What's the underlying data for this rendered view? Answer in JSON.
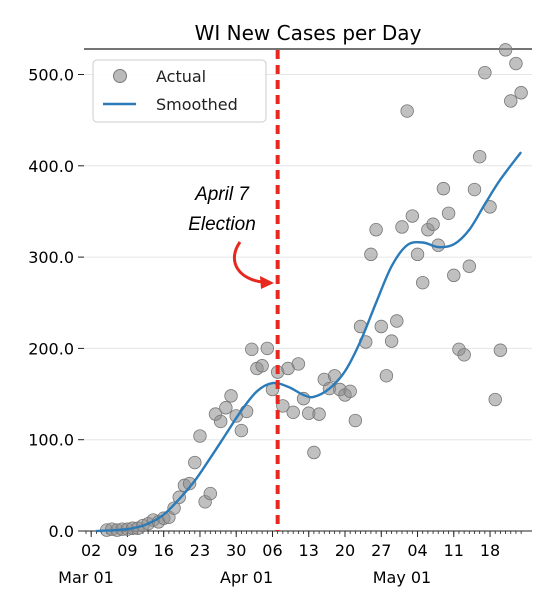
{
  "chart_data": {
    "type": "scatter",
    "title": "WI New Cases per Day",
    "xlabel": "",
    "ylabel": "",
    "x_range": [
      "2020-03-01",
      "2020-05-24"
    ],
    "ylim": [
      0,
      530
    ],
    "grid": "horizontal",
    "legend_position": "top-left",
    "y_ticks": [
      "0.0",
      "100.0",
      "200.0",
      "300.0",
      "400.0",
      "500.0"
    ],
    "x_tick_days": [
      "02",
      "09",
      "16",
      "23",
      "30",
      "06",
      "13",
      "20",
      "27",
      "04",
      "11",
      "18"
    ],
    "x_tick_months": [
      "Mar 01",
      "Apr 01",
      "May 01"
    ],
    "legend": [
      {
        "label": "Actual",
        "marker": "circle",
        "color": "#8c8c8c"
      },
      {
        "label": "Smoothed",
        "marker": "line",
        "color": "#2b7bb9"
      }
    ],
    "annotation": {
      "lines": [
        "April 7",
        "Election"
      ],
      "date": "2020-04-07",
      "line_color": "#e8281e",
      "arrow_color": "#e8281e"
    },
    "series": [
      {
        "name": "Actual",
        "kind": "scatter",
        "color": "#8c8c8c",
        "points": [
          [
            "2020-03-05",
            1
          ],
          [
            "2020-03-06",
            2
          ],
          [
            "2020-03-07",
            1
          ],
          [
            "2020-03-08",
            2
          ],
          [
            "2020-03-09",
            2
          ],
          [
            "2020-03-10",
            3
          ],
          [
            "2020-03-11",
            3
          ],
          [
            "2020-03-12",
            6
          ],
          [
            "2020-03-13",
            8
          ],
          [
            "2020-03-14",
            12
          ],
          [
            "2020-03-15",
            10
          ],
          [
            "2020-03-16",
            14
          ],
          [
            "2020-03-17",
            15
          ],
          [
            "2020-03-18",
            25
          ],
          [
            "2020-03-19",
            37
          ],
          [
            "2020-03-20",
            50
          ],
          [
            "2020-03-21",
            52
          ],
          [
            "2020-03-22",
            75
          ],
          [
            "2020-03-23",
            104
          ],
          [
            "2020-03-24",
            32
          ],
          [
            "2020-03-25",
            41
          ],
          [
            "2020-03-26",
            128
          ],
          [
            "2020-03-27",
            120
          ],
          [
            "2020-03-28",
            135
          ],
          [
            "2020-03-29",
            148
          ],
          [
            "2020-03-30",
            126
          ],
          [
            "2020-03-31",
            110
          ],
          [
            "2020-04-01",
            131
          ],
          [
            "2020-04-02",
            199
          ],
          [
            "2020-04-03",
            178
          ],
          [
            "2020-04-04",
            181
          ],
          [
            "2020-04-05",
            200
          ],
          [
            "2020-04-06",
            155
          ],
          [
            "2020-04-07",
            174
          ],
          [
            "2020-04-08",
            137
          ],
          [
            "2020-04-09",
            178
          ],
          [
            "2020-04-10",
            130
          ],
          [
            "2020-04-11",
            183
          ],
          [
            "2020-04-12",
            145
          ],
          [
            "2020-04-13",
            129
          ],
          [
            "2020-04-14",
            86
          ],
          [
            "2020-04-15",
            128
          ],
          [
            "2020-04-16",
            166
          ],
          [
            "2020-04-17",
            156
          ],
          [
            "2020-04-18",
            170
          ],
          [
            "2020-04-19",
            155
          ],
          [
            "2020-04-20",
            149
          ],
          [
            "2020-04-21",
            153
          ],
          [
            "2020-04-22",
            121
          ],
          [
            "2020-04-23",
            224
          ],
          [
            "2020-04-24",
            207
          ],
          [
            "2020-04-25",
            303
          ],
          [
            "2020-04-26",
            330
          ],
          [
            "2020-04-27",
            224
          ],
          [
            "2020-04-28",
            170
          ],
          [
            "2020-04-29",
            208
          ],
          [
            "2020-04-30",
            230
          ],
          [
            "2020-05-01",
            333
          ],
          [
            "2020-05-02",
            460
          ],
          [
            "2020-05-03",
            345
          ],
          [
            "2020-05-04",
            303
          ],
          [
            "2020-05-05",
            272
          ],
          [
            "2020-05-06",
            330
          ],
          [
            "2020-05-07",
            336
          ],
          [
            "2020-05-08",
            313
          ],
          [
            "2020-05-09",
            375
          ],
          [
            "2020-05-10",
            348
          ],
          [
            "2020-05-11",
            280
          ],
          [
            "2020-05-12",
            199
          ],
          [
            "2020-05-13",
            193
          ],
          [
            "2020-05-14",
            290
          ],
          [
            "2020-05-15",
            374
          ],
          [
            "2020-05-16",
            410
          ],
          [
            "2020-05-17",
            502
          ],
          [
            "2020-05-18",
            355
          ],
          [
            "2020-05-19",
            144
          ],
          [
            "2020-05-20",
            198
          ],
          [
            "2020-05-21",
            527
          ],
          [
            "2020-05-22",
            471
          ],
          [
            "2020-05-23",
            512
          ],
          [
            "2020-05-24",
            480
          ]
        ]
      },
      {
        "name": "Smoothed",
        "kind": "line",
        "color": "#2b7bb9",
        "points": [
          [
            "2020-03-03",
            0
          ],
          [
            "2020-03-07",
            1
          ],
          [
            "2020-03-10",
            3
          ],
          [
            "2020-03-13",
            8
          ],
          [
            "2020-03-16",
            18
          ],
          [
            "2020-03-19",
            35
          ],
          [
            "2020-03-22",
            55
          ],
          [
            "2020-03-25",
            80
          ],
          [
            "2020-03-28",
            106
          ],
          [
            "2020-03-31",
            132
          ],
          [
            "2020-04-03",
            153
          ],
          [
            "2020-04-06",
            162
          ],
          [
            "2020-04-09",
            158
          ],
          [
            "2020-04-12",
            149
          ],
          [
            "2020-04-14",
            147
          ],
          [
            "2020-04-17",
            156
          ],
          [
            "2020-04-20",
            175
          ],
          [
            "2020-04-23",
            208
          ],
          [
            "2020-04-26",
            250
          ],
          [
            "2020-04-29",
            290
          ],
          [
            "2020-05-02",
            313
          ],
          [
            "2020-05-05",
            316
          ],
          [
            "2020-05-08",
            311
          ],
          [
            "2020-05-11",
            314
          ],
          [
            "2020-05-14",
            330
          ],
          [
            "2020-05-17",
            358
          ],
          [
            "2020-05-20",
            385
          ],
          [
            "2020-05-24",
            415
          ]
        ]
      }
    ]
  }
}
